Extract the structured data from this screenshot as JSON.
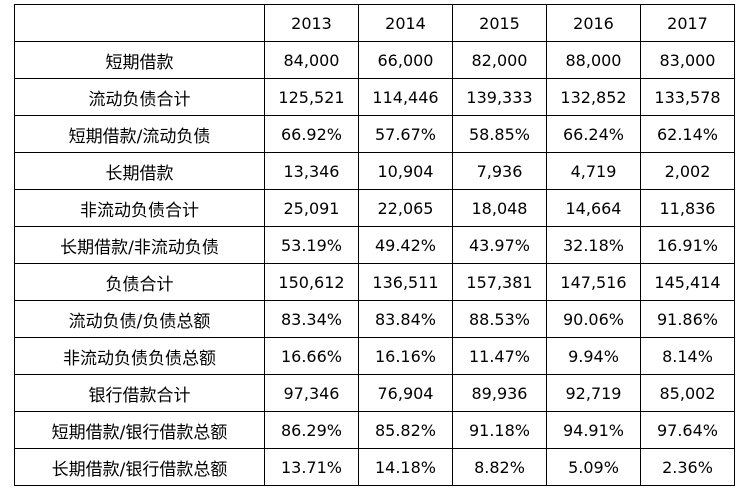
{
  "table": {
    "header": [
      "",
      "2013",
      "2014",
      "2015",
      "2016",
      "2017"
    ],
    "rows": [
      {
        "label": "短期借款",
        "values": [
          "84,000",
          "66,000",
          "82,000",
          "88,000",
          "83,000"
        ]
      },
      {
        "label": "流动负债合计",
        "values": [
          "125,521",
          "114,446",
          "139,333",
          "132,852",
          "133,578"
        ]
      },
      {
        "label": "短期借款/流动负债",
        "values": [
          "66.92%",
          "57.67%",
          "58.85%",
          "66.24%",
          "62.14%"
        ]
      },
      {
        "label": "长期借款",
        "values": [
          "13,346",
          "10,904",
          "7,936",
          "4,719",
          "2,002"
        ]
      },
      {
        "label": "非流动负债合计",
        "values": [
          "25,091",
          "22,065",
          "18,048",
          "14,664",
          "11,836"
        ]
      },
      {
        "label": "长期借款/非流动负债",
        "values": [
          "53.19%",
          "49.42%",
          "43.97%",
          "32.18%",
          "16.91%"
        ]
      },
      {
        "label": "负债合计",
        "values": [
          "150,612",
          "136,511",
          "157,381",
          "147,516",
          "145,414"
        ]
      },
      {
        "label": "流动负债/负债总额",
        "values": [
          "83.34%",
          "83.84%",
          "88.53%",
          "90.06%",
          "91.86%"
        ]
      },
      {
        "label": "非流动负债负债总额",
        "values": [
          "16.66%",
          "16.16%",
          "11.47%",
          "9.94%",
          "8.14%"
        ]
      },
      {
        "label": "银行借款合计",
        "values": [
          "97,346",
          "76,904",
          "89,936",
          "92,719",
          "85,002"
        ]
      },
      {
        "label": "短期借款/银行借款总额",
        "values": [
          "86.29%",
          "85.82%",
          "91.18%",
          "94.91%",
          "97.64%"
        ]
      },
      {
        "label": "长期借款/银行借款总额",
        "values": [
          "13.71%",
          "14.18%",
          "8.82%",
          "5.09%",
          "2.36%"
        ]
      }
    ]
  }
}
